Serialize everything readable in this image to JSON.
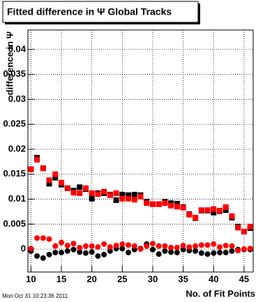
{
  "chart_data": {
    "type": "scatter",
    "title": "Fitted difference in Ψ   Global Tracks",
    "x_label": "No. of Fit Points",
    "y_label": "difference in Ψ",
    "timestamp": "Mon Oct 31 10:23:36 2011",
    "x": [
      10,
      11,
      12,
      13,
      14,
      15,
      16,
      17,
      18,
      19,
      20,
      21,
      22,
      23,
      24,
      25,
      26,
      27,
      28,
      29,
      30,
      31,
      32,
      33,
      34,
      35,
      36,
      37,
      38,
      39,
      40,
      41,
      42,
      43,
      44,
      45,
      46
    ],
    "series": [
      {
        "color": "#000000",
        "marker": "square",
        "values": [
          0.016,
          0.0183,
          0.0162,
          0.0131,
          0.0143,
          0.0129,
          0.0122,
          0.0117,
          0.0124,
          0.012,
          0.0101,
          0.0112,
          0.0112,
          0.0109,
          0.0098,
          0.0109,
          0.0108,
          0.0109,
          0.0108,
          0.0095,
          0.009,
          0.009,
          0.0095,
          0.0092,
          0.0091,
          0.0084,
          0.007,
          0.0062,
          0.0077,
          0.0077,
          0.0073,
          0.0076,
          0.0078,
          0.0063,
          0.0045,
          0.0035,
          0.0042
        ]
      },
      {
        "color": "#ff0000",
        "marker": "square",
        "values": [
          0.016,
          0.0179,
          0.0162,
          0.0138,
          0.015,
          0.0133,
          0.0122,
          0.0113,
          0.0112,
          0.0122,
          0.0112,
          0.011,
          0.0115,
          0.0108,
          0.0112,
          0.0101,
          0.0101,
          0.0099,
          0.0105,
          0.0092,
          0.009,
          0.009,
          0.0092,
          0.0087,
          0.0085,
          0.0083,
          0.0069,
          0.0063,
          0.0078,
          0.0078,
          0.008,
          0.0077,
          0.0084,
          0.0066,
          0.0043,
          0.0035,
          0.0045
        ]
      },
      {
        "color": "#000000",
        "marker": "circle",
        "values": [
          -0.0004,
          -0.0014,
          -0.0018,
          -0.0011,
          -0.0007,
          -0.0007,
          -0.0004,
          -0.0001,
          -0.0006,
          -0.0008,
          -0.0006,
          -0.0014,
          -0.0011,
          -0.0004,
          0.0001,
          0.0001,
          -0.0007,
          -0.0001,
          0.0001,
          0.001,
          -0.0001,
          -0.001,
          -0.0004,
          -0.0006,
          -0.0007,
          -0.0001,
          -0.0003,
          -0.0004,
          -0.0008,
          -0.001,
          -0.0008,
          -0.0007,
          -0.0007,
          -0.0004,
          -0.0001,
          -0.0001,
          -0.0001
        ]
      },
      {
        "color": "#ff0000",
        "marker": "circle",
        "values": [
          0.0001,
          0.0022,
          0.0022,
          0.002,
          0.0006,
          0.0013,
          0.0007,
          0.0011,
          0.0003,
          0.0006,
          0.0006,
          0.0004,
          0.001,
          0.0004,
          0.0007,
          0.001,
          0.0008,
          0.0006,
          0,
          0.0006,
          0.0011,
          0.0006,
          0.0006,
          0.0003,
          0.0003,
          0.0007,
          0.0004,
          0.0006,
          0.0008,
          0.0008,
          0.001,
          0.0004,
          0.0007,
          0.0006,
          -0.0003,
          0,
          0.0001
        ]
      }
    ],
    "xlim": [
      9.5,
      46.5
    ],
    "ylim": [
      -0.0046,
      0.0439
    ],
    "xticks": [
      10,
      15,
      20,
      25,
      30,
      35,
      40,
      45
    ],
    "yticks": [
      0,
      0.005,
      0.01,
      0.015,
      0.02,
      0.025,
      0.03,
      0.035,
      0.04
    ],
    "grid": true
  }
}
